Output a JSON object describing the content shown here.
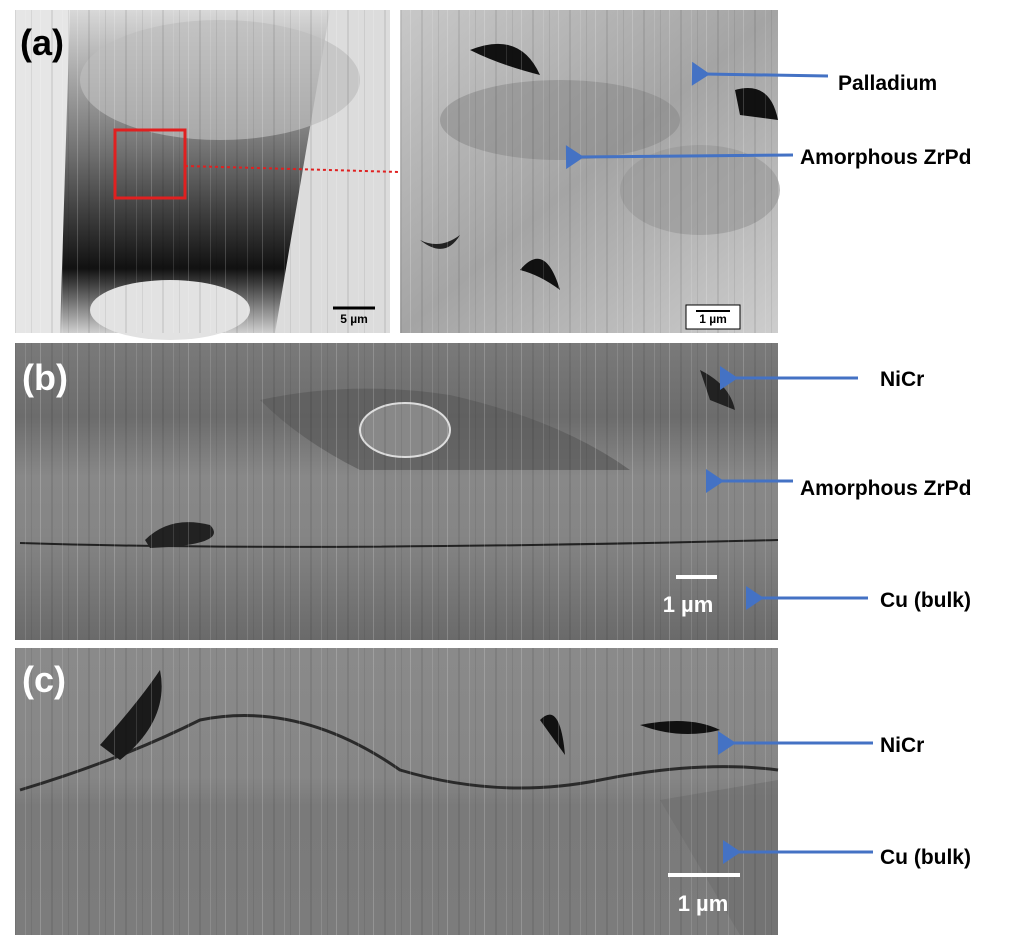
{
  "panels": [
    {
      "label": "(a)",
      "scale_bars": [
        "5 µm",
        "1 µm"
      ],
      "annotations": [
        "Palladium",
        "Amorphous ZrPd"
      ]
    },
    {
      "label": "(b)",
      "scale_bars": [
        "1 µm"
      ],
      "annotations": [
        "NiCr",
        "Amorphous ZrPd",
        "Cu (bulk)"
      ]
    },
    {
      "label": "(c)",
      "scale_bars": [
        "1 µm"
      ],
      "annotations": [
        "NiCr",
        "Cu (bulk)"
      ]
    }
  ]
}
